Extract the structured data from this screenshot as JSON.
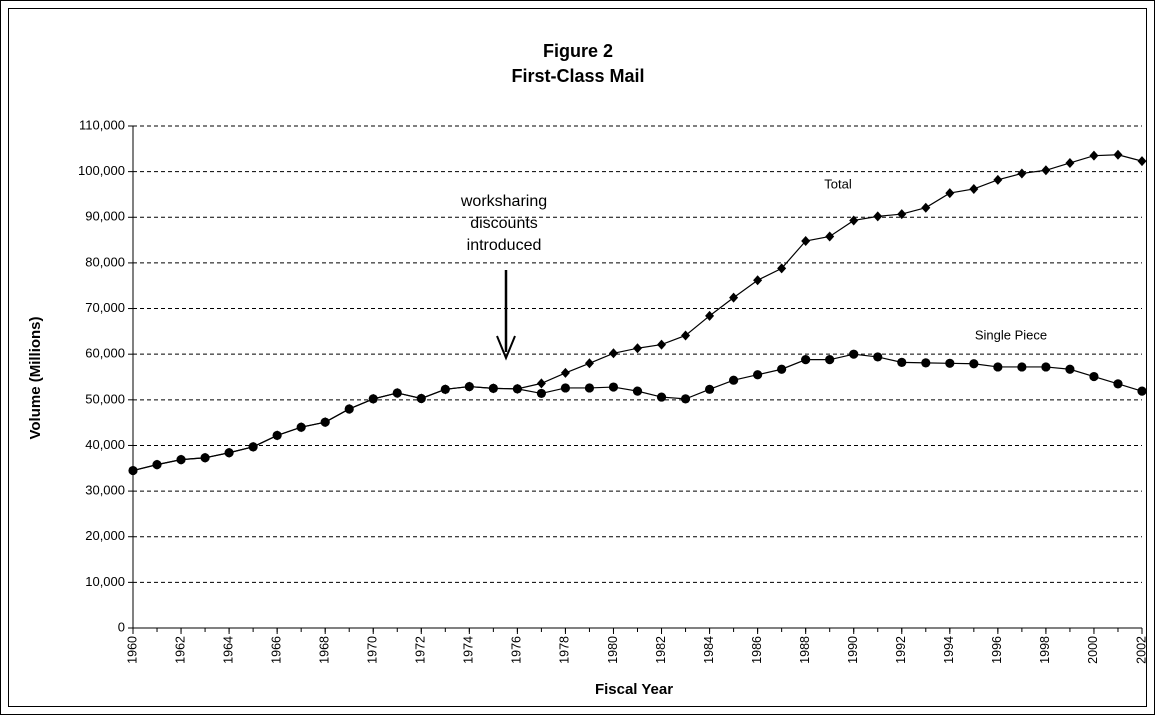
{
  "chart_data": {
    "type": "line",
    "title": [
      "Figure 2",
      "First-Class Mail"
    ],
    "x_label": "Fiscal Year",
    "y_label": "Volume (Millions)",
    "annotation": [
      "worksharing",
      "discounts",
      "introduced"
    ],
    "x": [
      1960,
      1961,
      1962,
      1963,
      1964,
      1965,
      1966,
      1967,
      1968,
      1969,
      1970,
      1971,
      1972,
      1973,
      1974,
      1975,
      1976,
      1977,
      1978,
      1979,
      1980,
      1981,
      1982,
      1983,
      1984,
      1985,
      1986,
      1987,
      1988,
      1989,
      1990,
      1991,
      1992,
      1993,
      1994,
      1995,
      1996,
      1997,
      1998,
      1999,
      2000,
      2001,
      2002
    ],
    "xlim": [
      1960,
      2002
    ],
    "xticks": [
      1960,
      1962,
      1964,
      1966,
      1968,
      1970,
      1972,
      1974,
      1976,
      1978,
      1980,
      1982,
      1984,
      1986,
      1988,
      1990,
      1992,
      1994,
      1996,
      1998,
      2000,
      2002
    ],
    "ylim": [
      0,
      110000
    ],
    "yticks": [
      0,
      {
        "value": 10000,
        "label": "10,000"
      },
      {
        "value": 20000,
        "label": "20,000"
      },
      {
        "value": 30000,
        "label": "30,000"
      },
      {
        "value": 40000,
        "label": "40,000"
      },
      {
        "value": 50000,
        "label": "50,000"
      },
      {
        "value": 60000,
        "label": "60,000"
      },
      {
        "value": 70000,
        "label": "70,000"
      },
      {
        "value": 80000,
        "label": "80,000"
      },
      {
        "value": 90000,
        "label": "90,000"
      },
      {
        "value": 100000,
        "label": "100,000"
      },
      {
        "value": 110000,
        "label": "110,000"
      }
    ],
    "grid": true,
    "series": [
      {
        "name": "Total",
        "color": "#000000",
        "marker": "diamond",
        "values": [
          34500,
          35800,
          36900,
          37300,
          38400,
          39700,
          42200,
          44000,
          45100,
          48000,
          50200,
          51500,
          50300,
          52300,
          52900,
          52500,
          52400,
          53600,
          55900,
          58000,
          60200,
          61300,
          62100,
          64100,
          68400,
          72400,
          76200,
          78800,
          84800,
          85800,
          89300,
          90200,
          90700,
          92100,
          95300,
          96200,
          98200,
          99600,
          100300,
          101900,
          103500,
          103700,
          102300
        ]
      },
      {
        "name": "Single Piece",
        "color": "#000000",
        "marker": "circle",
        "values": [
          34500,
          35800,
          36900,
          37300,
          38400,
          39700,
          42200,
          44000,
          45100,
          48000,
          50200,
          51500,
          50300,
          52300,
          52900,
          52500,
          52400,
          51400,
          52600,
          52600,
          52800,
          51900,
          50600,
          50200,
          52300,
          54300,
          55500,
          56700,
          58800,
          58800,
          60000,
          59400,
          58200,
          58100,
          58000,
          57900,
          57200,
          57200,
          57200,
          56700,
          55100,
          53500,
          51900
        ]
      }
    ]
  }
}
